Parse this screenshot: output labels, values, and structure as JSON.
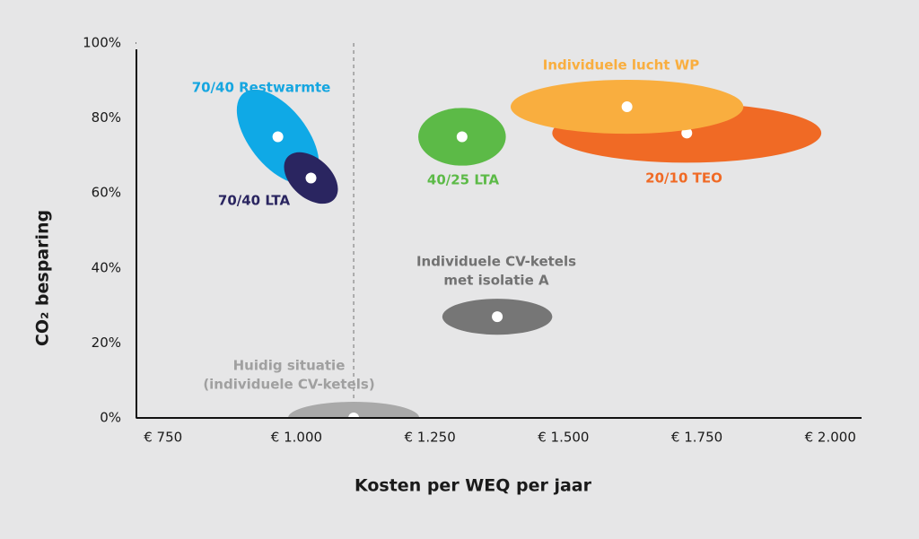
{
  "chart_data": {
    "type": "ellipse-scatter",
    "xlabel": "Kosten per WEQ per jaar",
    "ylabel": "CO₂ besparing",
    "xlim": [
      700,
      2050
    ],
    "ylim": [
      0,
      100
    ],
    "xticks": [
      {
        "value": 750,
        "label": "€ 750"
      },
      {
        "value": 1000,
        "label": "€ 1.000"
      },
      {
        "value": 1250,
        "label": "€ 1.250"
      },
      {
        "value": 1500,
        "label": "€ 1.500"
      },
      {
        "value": 1750,
        "label": "€ 1.750"
      },
      {
        "value": 2000,
        "label": "€ 2.000"
      }
    ],
    "yticks": [
      {
        "value": 0,
        "label": "0%"
      },
      {
        "value": 20,
        "label": "20%"
      },
      {
        "value": 40,
        "label": "40%"
      },
      {
        "value": 60,
        "label": "60%"
      },
      {
        "value": 80,
        "label": "80%"
      },
      {
        "value": 100,
        "label": "100%"
      }
    ],
    "reference_x": 1107,
    "series": [
      {
        "label": [
          "70/40 Restwarmte"
        ],
        "color": "#0fa9e6",
        "label_color": "#16a6e0",
        "x": 965,
        "y": 75,
        "x_spread": 104,
        "y_spread": 7.7,
        "angle": 52
      },
      {
        "label": [
          "70/40 LTA"
        ],
        "color": "#2a2560",
        "label_color": "#2a2560",
        "x": 1027,
        "y": 64,
        "x_spread": 59,
        "y_spread": 5.3,
        "angle": 42
      },
      {
        "label": [
          "40/25 LTA"
        ],
        "color": "#5cba47",
        "label_color": "#5cba47",
        "x": 1310,
        "y": 75,
        "x_spread": 82,
        "y_spread": 7.7,
        "angle": 0
      },
      {
        "label": [
          "20/10 TEO"
        ],
        "color": "#f06a25",
        "label_color": "#f06a25",
        "x": 1731,
        "y": 76,
        "x_spread": 252,
        "y_spread": 7.9,
        "angle": 0
      },
      {
        "label": [
          "Individuele lucht WP"
        ],
        "color": "#f9ae3f",
        "label_color": "#f9ae3f",
        "x": 1619,
        "y": 83,
        "x_spread": 218,
        "y_spread": 7.2,
        "angle": 0
      },
      {
        "label": [
          "Individuele CV-ketels",
          "met isolatie A"
        ],
        "color": "#767676",
        "label_color": "#727272",
        "x": 1376,
        "y": 27,
        "x_spread": 103,
        "y_spread": 4.8,
        "angle": 0
      },
      {
        "label": [
          "Huidig situatie",
          "(individuele CV-ketels)"
        ],
        "color": "#a9a9a9",
        "label_color": "#a0a0a0",
        "x": 1107,
        "y": 0,
        "x_spread": 123,
        "y_spread": 4.3,
        "angle": 0
      }
    ]
  }
}
